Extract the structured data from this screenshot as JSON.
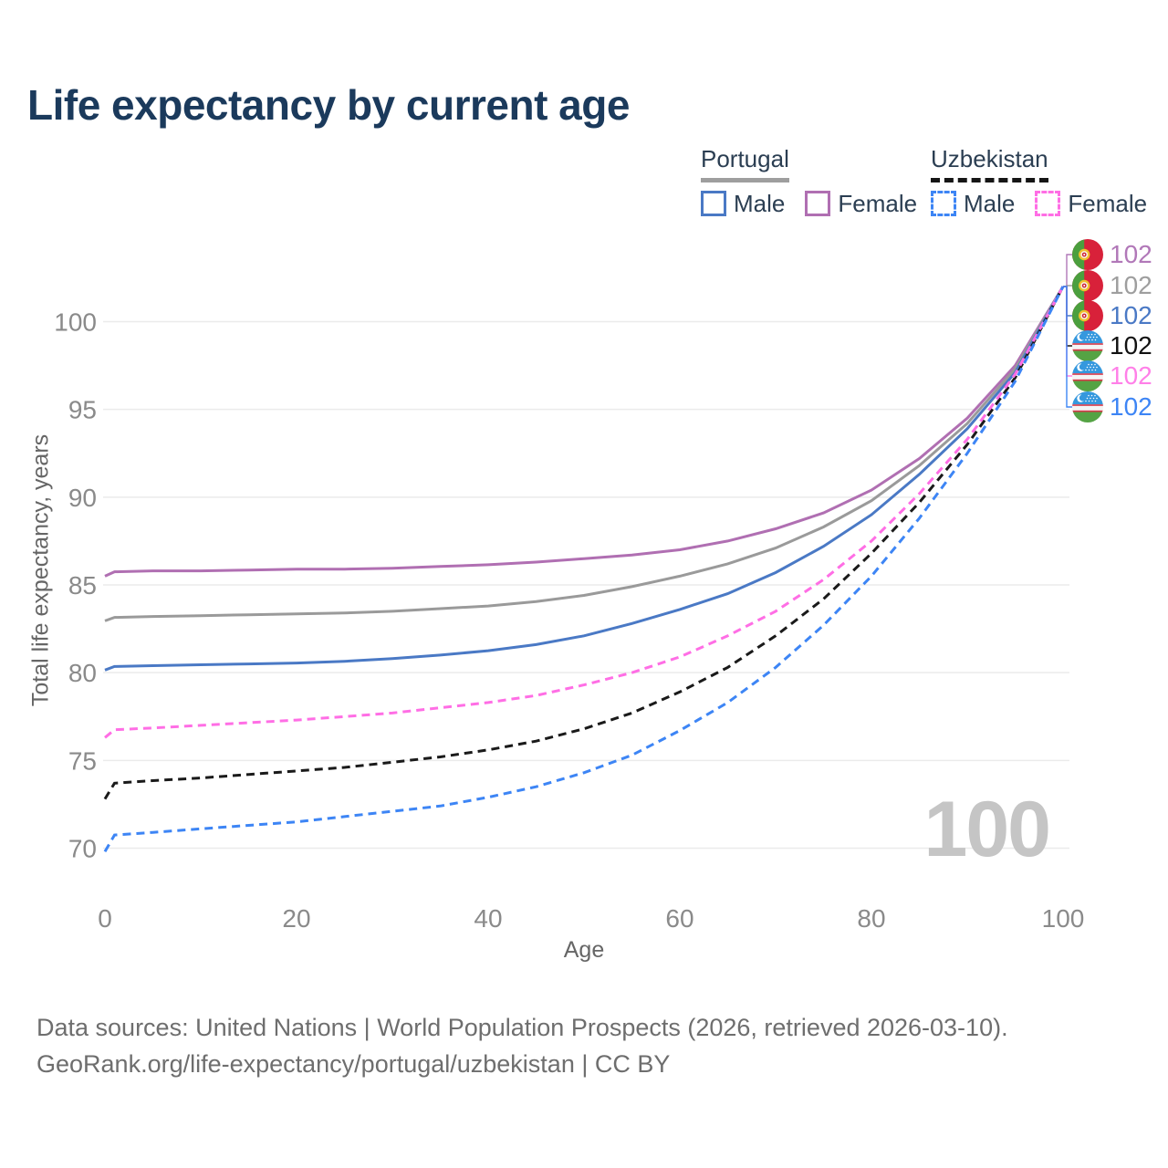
{
  "title": "Life expectancy by current age",
  "watermark_age": "100",
  "legend": {
    "groups": [
      {
        "label": "Portugal",
        "line_style": "solid",
        "line_color": "#9e9e9e",
        "items": [
          {
            "label": "Male",
            "color": "#4a79c5",
            "dashed": false
          },
          {
            "label": "Female",
            "color": "#b06fb2",
            "dashed": false
          }
        ]
      },
      {
        "label": "Uzbekistan",
        "line_style": "dashed",
        "line_color": "#151515",
        "items": [
          {
            "label": "Male",
            "color": "#3d85f5",
            "dashed": true
          },
          {
            "label": "Female",
            "color": "#ff6ee5",
            "dashed": true
          }
        ]
      }
    ]
  },
  "chart_data": {
    "type": "line",
    "title": "Life expectancy by current age",
    "xlabel": "Age",
    "ylabel": "Total life expectancy, years",
    "xlim": [
      0,
      100
    ],
    "ylim": [
      69.5,
      102.5
    ],
    "xticks": [
      0,
      20,
      40,
      60,
      80,
      100
    ],
    "yticks": [
      70,
      75,
      80,
      85,
      90,
      95,
      100
    ],
    "grid": "horizontal-only",
    "legend_position": "top-right",
    "x": [
      0,
      1,
      5,
      10,
      15,
      20,
      25,
      30,
      35,
      40,
      45,
      50,
      55,
      60,
      65,
      70,
      75,
      80,
      85,
      90,
      95,
      100
    ],
    "series": [
      {
        "name": "Portugal Female",
        "color": "#b06fb2",
        "dashed": false,
        "values": [
          85.5,
          85.75,
          85.8,
          85.8,
          85.85,
          85.9,
          85.9,
          85.95,
          86.05,
          86.15,
          86.3,
          86.5,
          86.7,
          87.0,
          87.5,
          88.2,
          89.1,
          90.4,
          92.2,
          94.5,
          97.5,
          102
        ]
      },
      {
        "name": "Portugal Both sexes",
        "color": "#9a9a9a",
        "dashed": false,
        "values": [
          82.95,
          83.15,
          83.2,
          83.25,
          83.3,
          83.35,
          83.4,
          83.5,
          83.65,
          83.8,
          84.05,
          84.4,
          84.9,
          85.5,
          86.2,
          87.1,
          88.3,
          89.8,
          91.8,
          94.2,
          97.3,
          102
        ]
      },
      {
        "name": "Portugal Male",
        "color": "#4a79c5",
        "dashed": false,
        "values": [
          80.15,
          80.35,
          80.4,
          80.45,
          80.5,
          80.55,
          80.65,
          80.8,
          81.0,
          81.25,
          81.6,
          82.1,
          82.8,
          83.6,
          84.5,
          85.7,
          87.2,
          89.0,
          91.3,
          93.9,
          97.1,
          102
        ]
      },
      {
        "name": "Uzbekistan Both sexes",
        "color": "#1a1a1a",
        "dashed": true,
        "values": [
          72.8,
          73.7,
          73.85,
          74.0,
          74.2,
          74.4,
          74.6,
          74.9,
          75.2,
          75.6,
          76.1,
          76.8,
          77.7,
          78.9,
          80.3,
          82.1,
          84.2,
          86.8,
          89.7,
          93.0,
          96.8,
          102
        ]
      },
      {
        "name": "Uzbekistan Female",
        "color": "#ff6ee5",
        "dashed": true,
        "values": [
          76.3,
          76.75,
          76.85,
          77.0,
          77.15,
          77.3,
          77.5,
          77.7,
          78.0,
          78.3,
          78.7,
          79.3,
          80.0,
          80.9,
          82.1,
          83.5,
          85.3,
          87.5,
          90.2,
          93.3,
          97.0,
          102
        ]
      },
      {
        "name": "Uzbekistan Male",
        "color": "#3d85f5",
        "dashed": true,
        "values": [
          69.8,
          70.75,
          70.9,
          71.1,
          71.3,
          71.5,
          71.8,
          72.1,
          72.4,
          72.9,
          73.5,
          74.3,
          75.3,
          76.7,
          78.3,
          80.3,
          82.7,
          85.5,
          88.8,
          92.5,
          96.6,
          102
        ]
      }
    ]
  },
  "end_labels": [
    {
      "series": "Portugal Female",
      "flag": "portugal",
      "value": "102",
      "color": "#b178b8"
    },
    {
      "series": "Portugal Both sexes",
      "flag": "portugal",
      "value": "102",
      "color": "#9e9e9e"
    },
    {
      "series": "Portugal Male",
      "flag": "portugal",
      "value": "102",
      "color": "#4a79c5"
    },
    {
      "series": "Uzbekistan Both sexes",
      "flag": "uzbekistan",
      "value": "102",
      "color": "#111111"
    },
    {
      "series": "Uzbekistan Female",
      "flag": "uzbekistan",
      "value": "102",
      "color": "#ff80e8"
    },
    {
      "series": "Uzbekistan Male",
      "flag": "uzbekistan",
      "value": "102",
      "color": "#3d85f5"
    }
  ],
  "footer": {
    "line1": "Data sources: United Nations | World Population Prospects (2026, retrieved 2026-03-10).",
    "line2": "GeoRank.org/life-expectancy/portugal/uzbekistan | CC BY"
  }
}
